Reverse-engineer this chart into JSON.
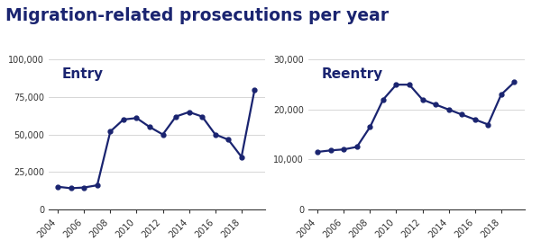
{
  "title": "Migration-related prosecutions per year",
  "title_color": "#1a2470",
  "title_fontsize": 13.5,
  "title_fontweight": "bold",
  "line_color": "#1a2470",
  "background_color": "#ffffff",
  "entry": {
    "label": "Entry",
    "years": [
      2004,
      2005,
      2006,
      2007,
      2008,
      2009,
      2010,
      2011,
      2012,
      2013,
      2014,
      2015,
      2016,
      2017,
      2018,
      2019
    ],
    "values": [
      15000,
      14000,
      14500,
      16000,
      52000,
      60000,
      61000,
      55000,
      50000,
      62000,
      65000,
      62000,
      50000,
      46500,
      35000,
      80000
    ],
    "ylim": [
      0,
      100000
    ],
    "yticks": [
      0,
      25000,
      50000,
      75000,
      100000
    ],
    "ytick_labels": [
      "0",
      "25,000",
      "50,000",
      "75,000",
      "100,000"
    ]
  },
  "reentry": {
    "label": "Reentry",
    "years": [
      2004,
      2005,
      2006,
      2007,
      2008,
      2009,
      2010,
      2011,
      2012,
      2013,
      2014,
      2015,
      2016,
      2017,
      2018,
      2019
    ],
    "values": [
      11500,
      11800,
      12000,
      12500,
      16500,
      22000,
      25000,
      25000,
      22000,
      21000,
      20000,
      19000,
      18000,
      17000,
      23000,
      25500
    ],
    "ylim": [
      0,
      30000
    ],
    "yticks": [
      0,
      10000,
      20000,
      30000
    ],
    "ytick_labels": [
      "0",
      "10,000",
      "20,000",
      "30,000"
    ]
  },
  "xticks": [
    2004,
    2006,
    2008,
    2010,
    2012,
    2014,
    2016,
    2018
  ],
  "xlim": [
    2003.3,
    2019.8
  ],
  "marker": "o",
  "marker_size": 3.5,
  "line_width": 1.6,
  "grid_color": "#d0d0d0",
  "label_fontsize": 11,
  "tick_fontsize": 7,
  "fig_width": 6.0,
  "fig_height": 2.77,
  "dpi": 100
}
